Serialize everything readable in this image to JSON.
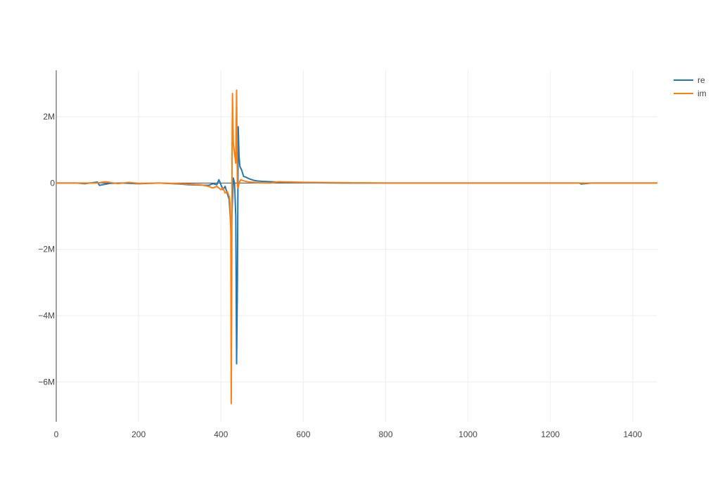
{
  "chart_data": {
    "type": "line",
    "title": "",
    "xlabel": "",
    "ylabel": "",
    "xlim": [
      0,
      1460
    ],
    "ylim": [
      -7200000,
      3400000
    ],
    "grid": true,
    "legend_position": "top-right",
    "x_ticks": [
      {
        "value": 0,
        "label": "0"
      },
      {
        "value": 200,
        "label": "200"
      },
      {
        "value": 400,
        "label": "400"
      },
      {
        "value": 600,
        "label": "600"
      },
      {
        "value": 800,
        "label": "800"
      },
      {
        "value": 1000,
        "label": "1000"
      },
      {
        "value": 1200,
        "label": "1200"
      },
      {
        "value": 1400,
        "label": "1400"
      }
    ],
    "y_ticks": [
      {
        "value": -6000000,
        "label": "−6M"
      },
      {
        "value": -4000000,
        "label": "−4M"
      },
      {
        "value": -2000000,
        "label": "−2M"
      },
      {
        "value": 0,
        "label": "0"
      },
      {
        "value": 2000000,
        "label": "2M"
      }
    ],
    "series": [
      {
        "name": "re",
        "color": "#1f77b4",
        "x": [
          0,
          50,
          70,
          100,
          105,
          130,
          160,
          200,
          250,
          300,
          320,
          350,
          370,
          380,
          390,
          395,
          400,
          405,
          410,
          415,
          420,
          425,
          430,
          433,
          436,
          438,
          440,
          442,
          444,
          446,
          450,
          455,
          460,
          470,
          480,
          490,
          500,
          520,
          540,
          600,
          700,
          800,
          850,
          900,
          1000,
          1100,
          1200,
          1270,
          1275,
          1300,
          1400,
          1460
        ],
        "y": [
          0,
          0,
          -20000,
          30000,
          -70000,
          -10000,
          0,
          -20000,
          0,
          -30000,
          -50000,
          -60000,
          -70000,
          -20000,
          -50000,
          100000,
          -50000,
          -200000,
          -100000,
          -300000,
          -500000,
          -1500000,
          150000,
          0,
          -1000000,
          -5450000,
          -3000000,
          1700000,
          800000,
          500000,
          400000,
          200000,
          180000,
          120000,
          80000,
          60000,
          50000,
          40000,
          30000,
          10000,
          0,
          0,
          0,
          0,
          0,
          0,
          0,
          0,
          -30000,
          0,
          0,
          0
        ]
      },
      {
        "name": "im",
        "color": "#ff7f0e",
        "x": [
          0,
          50,
          100,
          120,
          150,
          175,
          200,
          250,
          300,
          350,
          370,
          380,
          390,
          400,
          405,
          410,
          415,
          420,
          422,
          424,
          425,
          426,
          427,
          428,
          430,
          432,
          434,
          436,
          438,
          440,
          442,
          444,
          448,
          452,
          460,
          470,
          480,
          490,
          500,
          520,
          540,
          600,
          700,
          800,
          900,
          1000,
          1200,
          1400,
          1460
        ],
        "y": [
          0,
          0,
          0,
          40000,
          -20000,
          20000,
          -10000,
          0,
          -20000,
          -50000,
          -100000,
          -150000,
          -100000,
          -200000,
          -150000,
          -300000,
          -250000,
          -400000,
          -600000,
          -1500000,
          -6650000,
          -4000000,
          1000000,
          2700000,
          1200000,
          1000000,
          800000,
          600000,
          2800000,
          -100000,
          -150000,
          0,
          100000,
          80000,
          50000,
          30000,
          20000,
          10000,
          5000,
          0,
          40000,
          20000,
          10000,
          0,
          0,
          0,
          0,
          0,
          0
        ]
      }
    ]
  }
}
